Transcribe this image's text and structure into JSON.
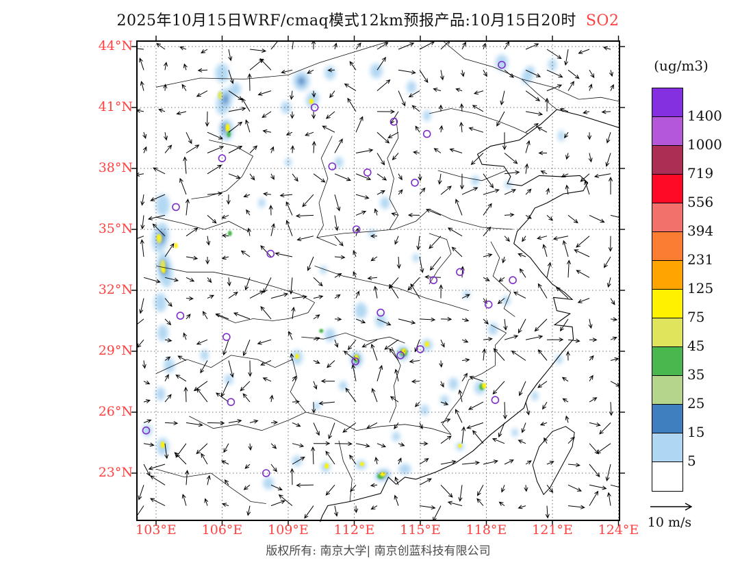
{
  "title": {
    "text": "2025年10月15日WRF/cmaq模式12km预报产品:10月15日20时",
    "species": "SO2"
  },
  "footer": "版权所有: 南京大学| 南京创蓝科技有限公司",
  "wind_legend": "10 m/s",
  "colors": {
    "accent_red": "#ff4141",
    "marker_purple": "#7d2ec8",
    "footer_gray": "#4a4a4a"
  },
  "axes": {
    "lat": [
      "44°N",
      "41°N",
      "38°N",
      "35°N",
      "32°N",
      "29°N",
      "26°N",
      "23°N"
    ],
    "lon": [
      "103°E",
      "106°E",
      "109°E",
      "112°E",
      "115°E",
      "118°E",
      "121°E",
      "124°E"
    ]
  },
  "colorbar": {
    "unit": "(ug/m3)",
    "labels": [
      "1400",
      "1000",
      "719",
      "556",
      "394",
      "231",
      "125",
      "75",
      "45",
      "35",
      "25",
      "15",
      "5"
    ],
    "colors": [
      "#8430E0",
      "#B457D8",
      "#AC2E55",
      "#FF0A26",
      "#F3716B",
      "#FA7D32",
      "#FFA400",
      "#FFF100",
      "#DFE45C",
      "#49B64E",
      "#B5D58C",
      "#3F7FBF",
      "#AFD6F2",
      "#FFFFFF"
    ]
  },
  "chart_data": {
    "type": "heatmap",
    "variable": "SO2",
    "unit": "ug/m3",
    "levels": [
      5,
      15,
      25,
      35,
      45,
      75,
      125,
      231,
      394,
      556,
      719,
      1000,
      1400
    ],
    "lat_ticks": [
      44,
      41,
      38,
      35,
      32,
      29,
      26,
      23
    ],
    "lon_ticks": [
      103,
      106,
      109,
      112,
      115,
      118,
      121,
      124
    ],
    "lon_range": [
      102.1,
      124.1
    ],
    "lat_range": [
      20.6,
      44.3
    ],
    "palette": {
      "b1": "#AFD6F2",
      "b2": "#3F7FBF",
      "g1": "#B5D58C",
      "g2": "#49B64E",
      "k": "#DFE45C",
      "y": "#FFF100"
    },
    "patches": [
      [
        103.3,
        36.2,
        10,
        16,
        "b1",
        0
      ],
      [
        103.2,
        34.6,
        12,
        22,
        "b1",
        10
      ],
      [
        103.4,
        33.0,
        11,
        26,
        "b1",
        -8
      ],
      [
        103.2,
        31.4,
        9,
        14,
        "b1",
        0
      ],
      [
        103.3,
        29.9,
        8,
        12,
        "b1",
        0
      ],
      [
        103.6,
        28.3,
        8,
        11,
        "b1",
        0
      ],
      [
        103.2,
        26.9,
        7,
        10,
        "b1",
        0
      ],
      [
        103.3,
        24.3,
        9,
        13,
        "b1",
        0
      ],
      [
        102.6,
        25.1,
        7,
        9,
        "b1",
        0
      ],
      [
        106.0,
        42.7,
        10,
        14,
        "b1",
        0
      ],
      [
        106.1,
        41.3,
        11,
        20,
        "b1",
        15
      ],
      [
        106.2,
        39.9,
        10,
        16,
        "b1",
        0
      ],
      [
        106.6,
        41.9,
        8,
        10,
        "b1",
        0
      ],
      [
        109.6,
        42.3,
        12,
        14,
        "b1",
        0
      ],
      [
        110.1,
        41.4,
        9,
        12,
        "b1",
        20
      ],
      [
        110.9,
        42.7,
        8,
        10,
        "b1",
        0
      ],
      [
        108.9,
        41.0,
        7,
        9,
        "b1",
        0
      ],
      [
        113.0,
        42.8,
        9,
        11,
        "b1",
        0
      ],
      [
        114.6,
        42.0,
        7,
        9,
        "b1",
        0
      ],
      [
        118.7,
        43.2,
        9,
        12,
        "b1",
        0
      ],
      [
        119.9,
        42.6,
        8,
        14,
        "b1",
        25
      ],
      [
        121.0,
        43.1,
        6,
        9,
        "b1",
        0
      ],
      [
        121.4,
        39.6,
        5,
        8,
        "b1",
        0
      ],
      [
        115.3,
        40.6,
        6,
        8,
        "b1",
        0
      ],
      [
        111.3,
        38.3,
        6,
        8,
        "b1",
        0
      ],
      [
        113.4,
        36.3,
        7,
        9,
        "b1",
        0
      ],
      [
        107.8,
        36.3,
        5,
        7,
        "b1",
        0
      ],
      [
        109.0,
        38.3,
        5,
        6,
        "b1",
        0
      ],
      [
        117.5,
        37.4,
        6,
        7,
        "b1",
        0
      ],
      [
        119.0,
        37.2,
        5,
        6,
        "b1",
        0
      ],
      [
        112.8,
        34.8,
        5,
        6,
        "b1",
        0
      ],
      [
        114.8,
        33.6,
        5,
        6,
        "b1",
        0
      ],
      [
        110.6,
        33.0,
        5,
        6,
        "b1",
        0
      ],
      [
        112.3,
        31.0,
        9,
        12,
        "b1",
        0
      ],
      [
        113.2,
        30.5,
        8,
        10,
        "b1",
        0
      ],
      [
        110.9,
        29.8,
        8,
        10,
        "b1",
        0
      ],
      [
        109.4,
        28.7,
        8,
        11,
        "b1",
        0
      ],
      [
        112.1,
        28.6,
        9,
        12,
        "b1",
        0
      ],
      [
        114.2,
        28.9,
        9,
        11,
        "b1",
        0
      ],
      [
        115.3,
        29.3,
        8,
        9,
        "b1",
        0
      ],
      [
        116.5,
        27.4,
        7,
        9,
        "b1",
        0
      ],
      [
        117.7,
        27.2,
        8,
        10,
        "b1",
        0
      ],
      [
        113.3,
        22.9,
        12,
        9,
        "b1",
        -20
      ],
      [
        114.3,
        23.2,
        9,
        8,
        "b1",
        0
      ],
      [
        112.3,
        23.4,
        8,
        7,
        "b1",
        0
      ],
      [
        110.7,
        23.3,
        7,
        8,
        "b1",
        0
      ],
      [
        108.1,
        22.5,
        8,
        9,
        "b1",
        0
      ],
      [
        109.4,
        23.6,
        7,
        8,
        "b1",
        0
      ],
      [
        115.2,
        26.1,
        6,
        8,
        "b1",
        0
      ],
      [
        116.1,
        26.6,
        6,
        7,
        "b1",
        0
      ],
      [
        118.3,
        30.1,
        7,
        9,
        "b1",
        0
      ],
      [
        118.9,
        31.5,
        6,
        7,
        "b1",
        0
      ],
      [
        117.1,
        31.8,
        5,
        6,
        "b1",
        0
      ],
      [
        105.2,
        28.8,
        6,
        8,
        "b1",
        0
      ],
      [
        106.3,
        27.6,
        6,
        8,
        "b1",
        0
      ],
      [
        111.5,
        27.3,
        6,
        7,
        "b1",
        0
      ],
      [
        110.3,
        26.3,
        5,
        6,
        "b1",
        0
      ],
      [
        113.9,
        24.8,
        6,
        7,
        "b1",
        0
      ],
      [
        116.8,
        24.3,
        6,
        6,
        "b1",
        0
      ],
      [
        119.3,
        25.0,
        5,
        6,
        "b1",
        0
      ],
      [
        120.2,
        26.8,
        5,
        7,
        "b1",
        0
      ],
      [
        121.3,
        28.6,
        5,
        7,
        "b1",
        0
      ],
      [
        103.25,
        34.6,
        5,
        10,
        "b2",
        10
      ],
      [
        103.35,
        33.1,
        5,
        12,
        "b2",
        -8
      ],
      [
        106.1,
        40.0,
        4,
        8,
        "b2",
        0
      ],
      [
        106.15,
        41.4,
        4,
        8,
        "b2",
        10
      ],
      [
        113.3,
        22.9,
        6,
        4,
        "b2",
        -20
      ],
      [
        109.6,
        42.3,
        5,
        6,
        "b2",
        0
      ],
      [
        112.1,
        28.6,
        4,
        6,
        "b2",
        0
      ],
      [
        114.2,
        28.9,
        4,
        5,
        "b2",
        0
      ],
      [
        103.15,
        34.55,
        4,
        7,
        "k",
        0
      ],
      [
        103.1,
        34.6,
        2.5,
        4,
        "y",
        0
      ],
      [
        103.3,
        33.2,
        4,
        9,
        "k",
        0
      ],
      [
        103.35,
        33.0,
        2.5,
        5,
        "y",
        0
      ],
      [
        103.3,
        24.4,
        3,
        5,
        "y",
        0
      ],
      [
        105.9,
        41.6,
        3,
        6,
        "k",
        0
      ],
      [
        106.25,
        40.0,
        3,
        6,
        "y",
        0
      ],
      [
        106.3,
        39.7,
        3,
        5,
        "g2",
        0
      ],
      [
        110.05,
        41.3,
        3,
        4,
        "y",
        0
      ],
      [
        109.4,
        28.75,
        2.5,
        4,
        "y",
        0
      ],
      [
        112.1,
        28.65,
        4,
        6,
        "g2",
        0
      ],
      [
        112.1,
        28.7,
        2.5,
        4,
        "y",
        0
      ],
      [
        114.25,
        28.95,
        5,
        6,
        "g2",
        0
      ],
      [
        114.25,
        29.0,
        3,
        4,
        "y",
        0
      ],
      [
        115.3,
        29.35,
        3,
        4,
        "y",
        0
      ],
      [
        117.8,
        27.25,
        4,
        5,
        "g2",
        0
      ],
      [
        117.9,
        27.3,
        3,
        4,
        "y",
        0
      ],
      [
        113.2,
        22.85,
        5,
        4,
        "g2",
        0
      ],
      [
        113.3,
        22.95,
        4,
        3,
        "y",
        0
      ],
      [
        112.35,
        23.45,
        3,
        3,
        "y",
        0
      ],
      [
        110.75,
        23.35,
        3,
        4,
        "y",
        0
      ],
      [
        116.8,
        24.35,
        2.5,
        3,
        "y",
        0
      ],
      [
        106.35,
        34.8,
        3,
        4,
        "g2",
        0
      ],
      [
        103.9,
        34.2,
        2.5,
        4,
        "y",
        0
      ],
      [
        110.5,
        30.0,
        3,
        3,
        "g2",
        0
      ]
    ],
    "city_markers": [
      [
        118.7,
        43.1
      ],
      [
        110.2,
        41.0
      ],
      [
        113.8,
        40.3
      ],
      [
        115.3,
        39.7
      ],
      [
        106.0,
        38.5
      ],
      [
        111.0,
        38.1
      ],
      [
        112.6,
        37.8
      ],
      [
        114.75,
        37.3
      ],
      [
        103.9,
        36.1
      ],
      [
        108.2,
        33.8
      ],
      [
        112.1,
        35.0
      ],
      [
        115.6,
        32.5
      ],
      [
        116.8,
        32.9
      ],
      [
        119.2,
        32.5
      ],
      [
        118.1,
        31.3
      ],
      [
        104.1,
        30.75
      ],
      [
        113.2,
        30.9
      ],
      [
        106.2,
        29.7
      ],
      [
        112.05,
        28.5
      ],
      [
        114.1,
        28.8
      ],
      [
        115.0,
        29.1
      ],
      [
        106.4,
        26.5
      ],
      [
        118.4,
        26.6
      ],
      [
        102.55,
        25.1
      ],
      [
        108.0,
        23.0
      ]
    ]
  }
}
